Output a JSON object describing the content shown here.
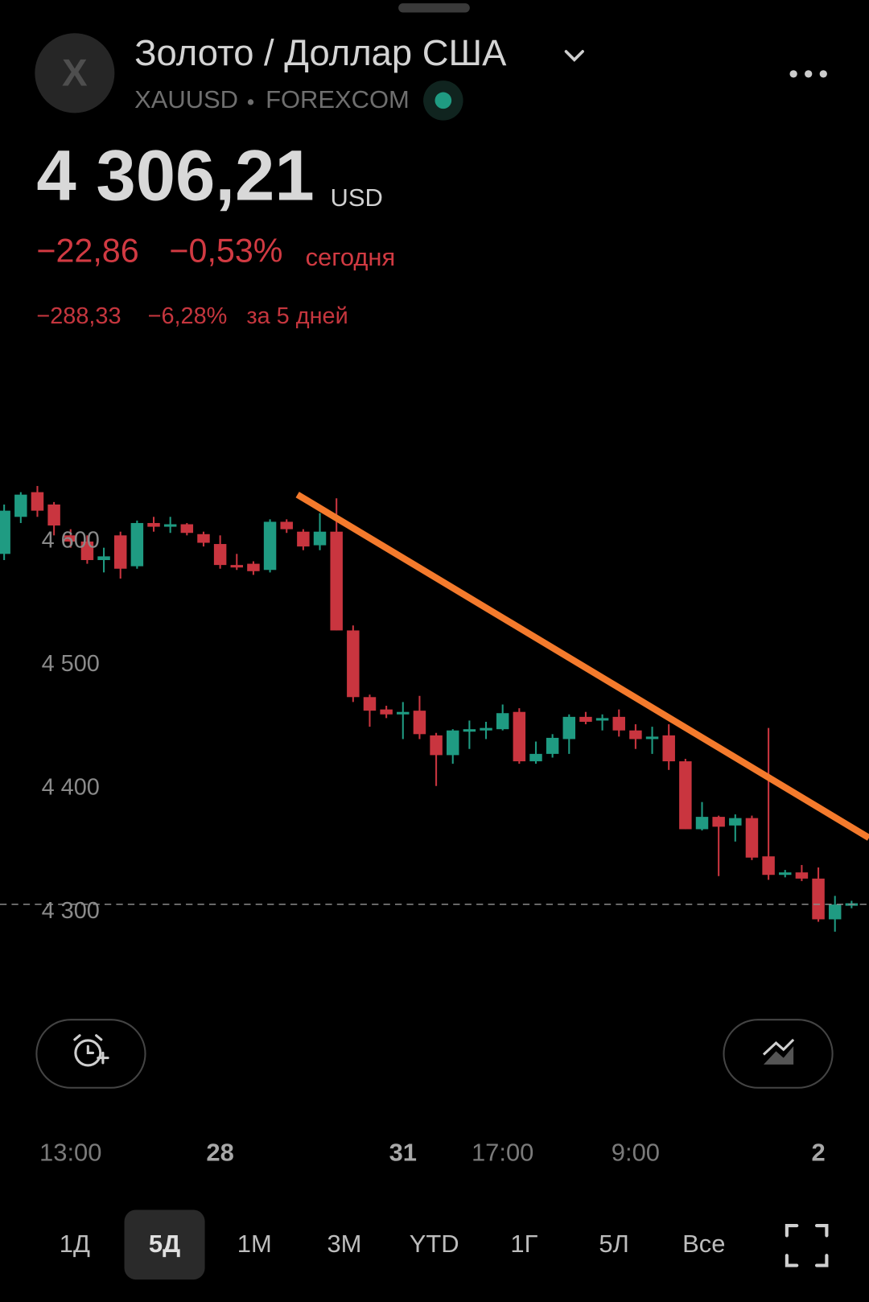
{
  "header": {
    "logo_letter": "X",
    "title": "Золото / Доллар США",
    "symbol": "XAUUSD",
    "exchange": "FOREXCOM"
  },
  "quote": {
    "price": "4 306,21",
    "currency": "USD",
    "change": "−22,86",
    "change_percent": "−0,53%",
    "change_period": "сегодня",
    "change_5d": "−288,33",
    "change_5d_percent": "−6,28%",
    "change_5d_period": "за 5 дней"
  },
  "chart_data": {
    "type": "candlestick",
    "categories": [
      null,
      null,
      null,
      null,
      "13:00",
      null,
      null,
      null,
      null,
      null,
      null,
      null,
      null,
      "28",
      null,
      null,
      null,
      null,
      null,
      null,
      null,
      null,
      null,
      null,
      "31",
      null,
      null,
      null,
      null,
      null,
      "17:00",
      null,
      null,
      null,
      null,
      null,
      null,
      null,
      "9:00",
      null,
      null,
      null,
      null,
      null,
      null,
      null,
      null,
      null,
      null,
      "2",
      null,
      null
    ],
    "open": [
      4590,
      4620,
      4640,
      4630,
      4605,
      4600,
      4585,
      4605,
      4580,
      4615,
      4612,
      4614,
      4606,
      4598,
      4581,
      4582,
      4577,
      4616,
      4608,
      4597,
      4608,
      4528,
      4474,
      4464,
      4460,
      4463,
      4443,
      4427,
      4446,
      4447,
      4448,
      4462,
      4422,
      4428,
      4440,
      4458,
      4455,
      4458,
      4447,
      4440,
      4443,
      4422,
      4367,
      4377,
      4370,
      4376,
      4345,
      4330,
      4332,
      4327,
      4294,
      4305
    ],
    "high": [
      4630,
      4640,
      4645,
      4632,
      4610,
      4605,
      4595,
      4608,
      4617,
      4620,
      4620,
      4615,
      4608,
      4605,
      4590,
      4584,
      4618,
      4618,
      4610,
      4623,
      4635,
      4532,
      4476,
      4467,
      4470,
      4475,
      4445,
      4448,
      4455,
      4454,
      4468,
      4465,
      4438,
      4444,
      4460,
      4462,
      4460,
      4464,
      4452,
      4450,
      4452,
      4424,
      4389,
      4378,
      4379,
      4378,
      4449,
      4334,
      4338,
      4336,
      4313,
      4309
    ],
    "low": [
      4585,
      4615,
      4620,
      4605,
      4595,
      4582,
      4575,
      4570,
      4578,
      4608,
      4607,
      4605,
      4596,
      4578,
      4577,
      4573,
      4575,
      4607,
      4593,
      4593,
      4528,
      4470,
      4450,
      4457,
      4440,
      4440,
      4402,
      4420,
      4432,
      4440,
      4447,
      4420,
      4420,
      4425,
      4428,
      4452,
      4447,
      4442,
      4432,
      4428,
      4415,
      4367,
      4366,
      4329,
      4357,
      4342,
      4326,
      4328,
      4325,
      4292,
      4284,
      4303
    ],
    "close": [
      4625,
      4638,
      4625,
      4613,
      4600,
      4585,
      4588,
      4578,
      4615,
      4612,
      4614,
      4607,
      4599,
      4581,
      4579,
      4576,
      4616,
      4610,
      4596,
      4608,
      4528,
      4474,
      4463,
      4460,
      4462,
      4444,
      4427,
      4447,
      4448,
      4449,
      4461,
      4422,
      4428,
      4441,
      4458,
      4454,
      4457,
      4447,
      4440,
      4442,
      4422,
      4367,
      4377,
      4369,
      4376,
      4344,
      4330,
      4332,
      4327,
      4294,
      4306,
      4307
    ],
    "up_color": "#1f9b82",
    "down_color": "#c9353f",
    "ylim": [
      4245,
      4662
    ],
    "yticks": [
      {
        "value": 4300,
        "label": "4 300"
      },
      {
        "value": 4400,
        "label": "4 400"
      },
      {
        "value": 4500,
        "label": "4 500"
      },
      {
        "value": 4600,
        "label": "4 600"
      }
    ],
    "price_line": 4306.21,
    "trendline": {
      "color": "#f47a2c",
      "points": [
        {
          "x": 17.65,
          "y": 4638
        },
        {
          "x": 52.05,
          "y": 4360
        }
      ]
    }
  },
  "periods": {
    "items": [
      "1Д",
      "5Д",
      "1М",
      "3М",
      "YTD",
      "1Г",
      "5Л",
      "Все"
    ],
    "selected": 1
  }
}
